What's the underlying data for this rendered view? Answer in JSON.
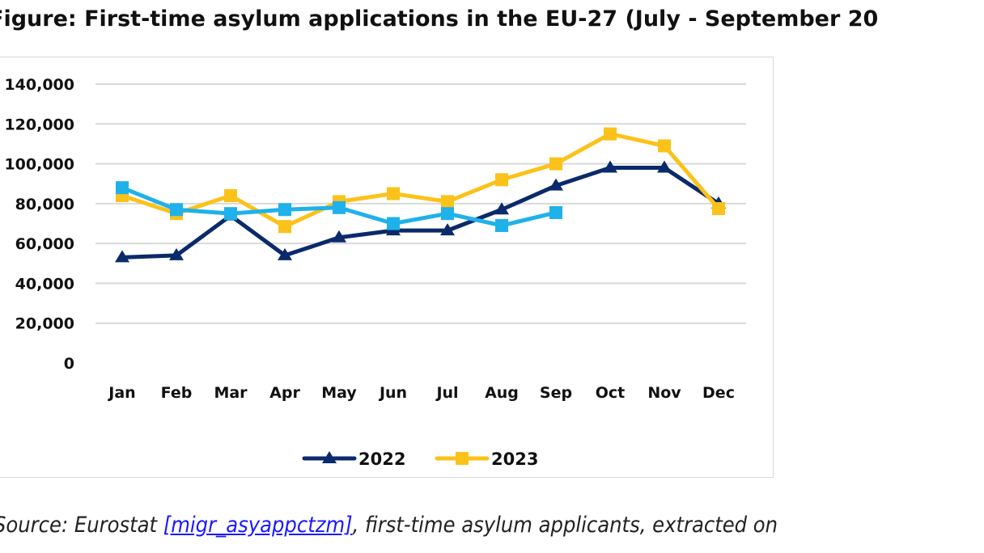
{
  "title": "Figure: First-time asylum applications in the EU-27 (July - September 20",
  "source": {
    "prefix": "Source: Eurostat ",
    "link": "[migr_asyappctzm]",
    "suffix": ", first-time asylum applicants, extracted on"
  },
  "chart_data": {
    "type": "line",
    "xlabel": "",
    "ylabel": "",
    "ylim": [
      0,
      140000
    ],
    "yticks": [
      "0",
      "20,000",
      "40,000",
      "60,000",
      "80,000",
      "100,000",
      "120,000",
      "140,000"
    ],
    "ytick_values": [
      0,
      20000,
      40000,
      60000,
      80000,
      100000,
      120000,
      140000
    ],
    "categories": [
      "Jan",
      "Feb",
      "Mar",
      "Apr",
      "May",
      "Jun",
      "Jul",
      "Aug",
      "Sep",
      "Oct",
      "Nov",
      "Dec"
    ],
    "grid": "horizontal",
    "legend": "bottom",
    "series": [
      {
        "name": "2022",
        "color": "#0b2a6b",
        "marker": "triangle",
        "values": [
          53000,
          54000,
          74000,
          54000,
          63000,
          66500,
          66500,
          77000,
          89000,
          98000,
          98000,
          80000
        ]
      },
      {
        "name": "2023",
        "color": "#fbc21a",
        "marker": "square",
        "values": [
          84000,
          75000,
          84000,
          68500,
          81000,
          85000,
          81000,
          92000,
          100000,
          115000,
          109000,
          77500
        ]
      },
      {
        "color": "#1fb1ea",
        "marker": "square",
        "values": [
          88000,
          77000,
          75000,
          77000,
          78000,
          70000,
          75000,
          69000,
          75500,
          null,
          null,
          null
        ]
      }
    ]
  }
}
